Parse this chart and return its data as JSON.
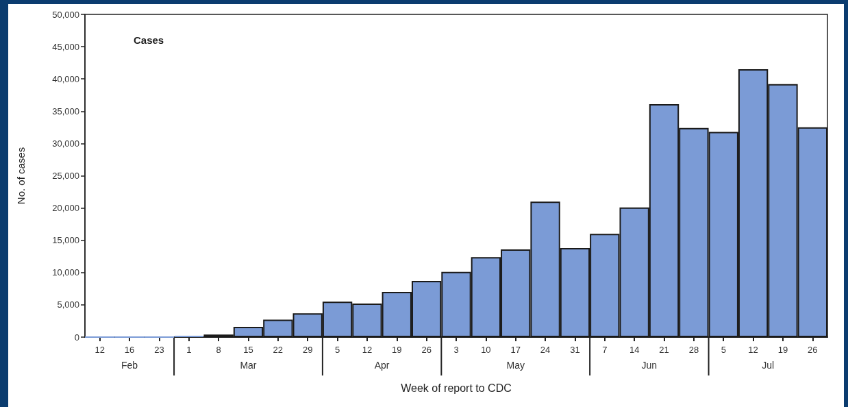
{
  "chart_data": {
    "type": "bar",
    "title": "Cases",
    "xlabel": "Week of report to CDC",
    "ylabel": "No. of cases",
    "categories": [
      "12",
      "16",
      "23",
      "1",
      "8",
      "15",
      "22",
      "29",
      "5",
      "12",
      "19",
      "26",
      "3",
      "10",
      "17",
      "24",
      "31",
      "7",
      "14",
      "21",
      "28",
      "5",
      "12",
      "19",
      "26"
    ],
    "values": [
      0,
      0,
      0,
      200,
      400,
      1600,
      2700,
      3700,
      5500,
      5200,
      7000,
      8700,
      10100,
      12400,
      13600,
      21000,
      13800,
      16000,
      20100,
      36100,
      32400,
      31800,
      41500,
      39200,
      32500
    ],
    "color": "#7b9bd6",
    "annotations": [
      "Feb",
      "Mar",
      "Apr",
      "May",
      "Jun",
      "Jul"
    ],
    "ylim": [
      0,
      50000
    ],
    "yticks": [
      0,
      {
        "value": 5000,
        "label": "5,000"
      },
      {
        "value": 10000,
        "label": "10,000"
      },
      {
        "value": 15000,
        "label": "15,000"
      },
      {
        "value": 20000,
        "label": "20,000"
      },
      {
        "value": 25000,
        "label": "25,000"
      },
      {
        "value": 30000,
        "label": "30,000"
      },
      {
        "value": 35000,
        "label": "35,000"
      },
      {
        "value": 40000,
        "label": "40,000"
      },
      {
        "value": 45000,
        "label": "45,000"
      },
      {
        "value": 50000,
        "label": "50,000"
      }
    ],
    "grid": false
  }
}
